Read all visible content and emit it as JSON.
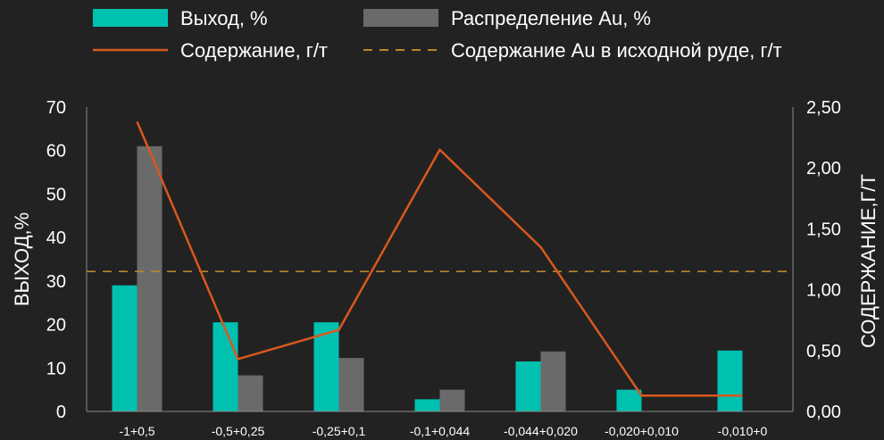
{
  "chart_data": {
    "type": "bar",
    "categories": [
      "-1+0,5",
      "-0,5+0,25",
      "-0,25+0,1",
      "-0,1+0,044",
      "-0,044+0,020",
      "-0,020+0,010",
      "-0,010+0"
    ],
    "series": [
      {
        "name": "Выход, %",
        "kind": "bar",
        "axis": "left",
        "color": "#00c0b0",
        "values": [
          29,
          20.5,
          20.5,
          2.8,
          11.5,
          5,
          14
        ]
      },
      {
        "name": "Распределение Au, %",
        "kind": "bar",
        "axis": "left",
        "color": "#6a6a6a",
        "values": [
          61,
          8.3,
          12.3,
          5,
          13.8,
          null,
          null
        ]
      },
      {
        "name": "Содержание, г/т",
        "kind": "line",
        "axis": "right",
        "color": "#d9581e",
        "values": [
          2.38,
          0.43,
          0.67,
          2.15,
          1.35,
          0.13,
          0.13
        ]
      },
      {
        "name": "Содержание Au в исходной руде, г/т",
        "kind": "dashed",
        "axis": "right",
        "color": "#b8862e",
        "value": 1.15
      }
    ],
    "ylabel": "ВЫХОД,%",
    "ylabel_right": "СОДЕРЖАНИЕ,Г/Т",
    "ylim": [
      0,
      70
    ],
    "yticks": [
      "0",
      "10",
      "20",
      "30",
      "40",
      "50",
      "60",
      "70"
    ],
    "ylim_right": [
      0,
      2.5
    ],
    "yticks_right": [
      "0,00",
      "0,50",
      "1,00",
      "1,50",
      "2,00",
      "2,50"
    ],
    "legend_position": "top",
    "grid": false
  }
}
